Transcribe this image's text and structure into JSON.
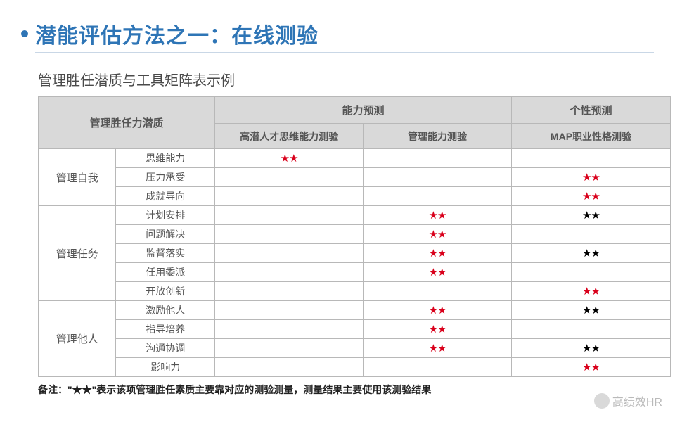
{
  "title": "潜能评估方法之一：在线测验",
  "subtitle": "管理胜任潜质与工具矩阵表示例",
  "headers": {
    "corner": "管理胜任力潜质",
    "group1": "能力预测",
    "group2": "个性预测",
    "col1": "高潜人才思维能力测验",
    "col2": "管理能力测验",
    "col3": "MAP职业性格测验"
  },
  "groups": [
    {
      "name": "管理自我",
      "rows": [
        {
          "label": "思维能力",
          "cells": [
            "red",
            "",
            ""
          ]
        },
        {
          "label": "压力承受",
          "cells": [
            "",
            "",
            "red"
          ]
        },
        {
          "label": "成就导向",
          "cells": [
            "",
            "",
            "red"
          ]
        }
      ]
    },
    {
      "name": "管理任务",
      "rows": [
        {
          "label": "计划安排",
          "cells": [
            "",
            "red",
            "black"
          ]
        },
        {
          "label": "问题解决",
          "cells": [
            "",
            "red",
            ""
          ]
        },
        {
          "label": "监督落实",
          "cells": [
            "",
            "red",
            "black"
          ]
        },
        {
          "label": "任用委派",
          "cells": [
            "",
            "red",
            ""
          ]
        },
        {
          "label": "开放创新",
          "cells": [
            "",
            "",
            "red"
          ]
        }
      ]
    },
    {
      "name": "管理他人",
      "rows": [
        {
          "label": "激励他人",
          "cells": [
            "",
            "red",
            "black"
          ]
        },
        {
          "label": "指导培养",
          "cells": [
            "",
            "red",
            ""
          ]
        },
        {
          "label": "沟通协调",
          "cells": [
            "",
            "red",
            "black"
          ]
        },
        {
          "label": "影响力",
          "cells": [
            "",
            "",
            "red"
          ]
        }
      ]
    }
  ],
  "footnote": "备注：\"★★\"表示该项管理胜任素质主要靠对应的测验测量，测量结果主要使用该测验结果",
  "watermark": "高绩效HR",
  "style": {
    "title_color": "#2E75B6",
    "underline_color": "#C9D7E6",
    "header_bg": "#D9D9D9",
    "header_text": "#555555",
    "border_color": "#B8B8B8",
    "star_red": "#D9001B",
    "star_black": "#000000",
    "star_glyph": "★★",
    "font": "Microsoft YaHei",
    "title_fontsize": 30,
    "subtitle_fontsize": 20,
    "header_fontsize": 15,
    "cell_fontsize": 14,
    "footnote_fontsize": 14,
    "background": "#ffffff",
    "slide_width": 960,
    "slide_height": 600
  }
}
